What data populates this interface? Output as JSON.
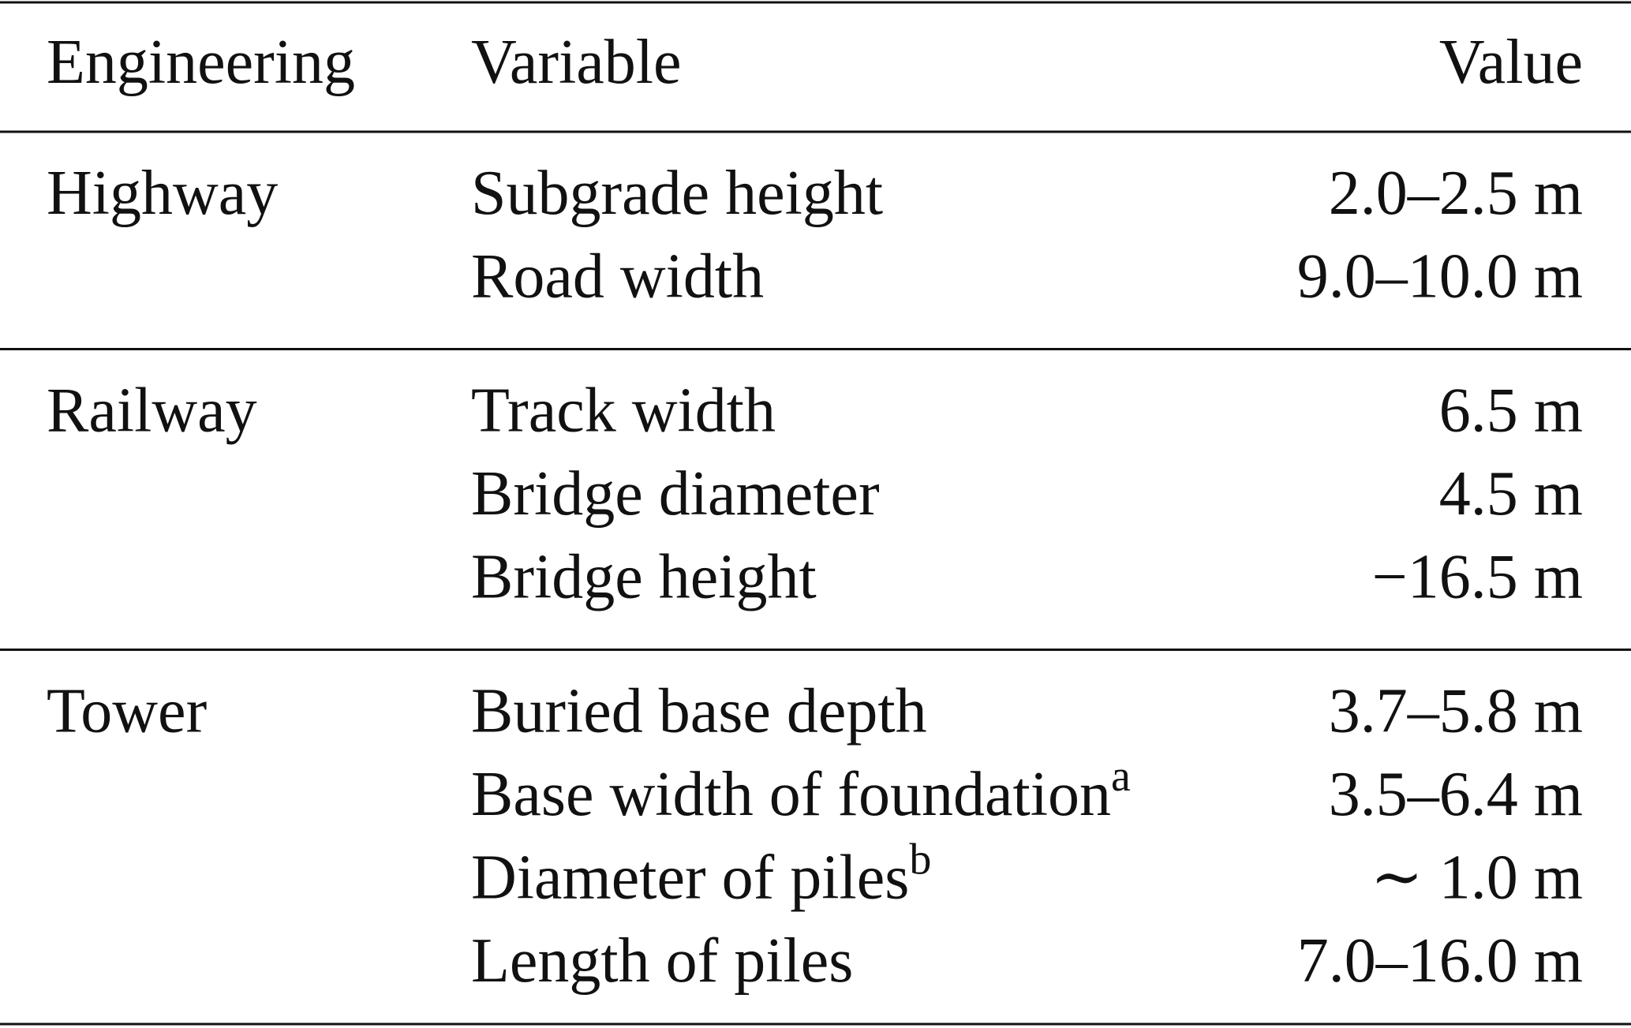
{
  "table": {
    "header": [
      "Engineering",
      "Variable",
      "Value"
    ],
    "groups": [
      {
        "engineering": "Highway",
        "rows": [
          {
            "variable": "Subgrade height",
            "value": "2.0–2.5 m"
          },
          {
            "variable": "Road width",
            "value": "9.0–10.0 m"
          }
        ]
      },
      {
        "engineering": "Railway",
        "rows": [
          {
            "variable": "Track width",
            "value": "6.5 m"
          },
          {
            "variable": "Bridge diameter",
            "value": "4.5 m"
          },
          {
            "variable": "Bridge height",
            "value": "−16.5 m"
          }
        ]
      },
      {
        "engineering": "Tower",
        "rows": [
          {
            "variable": "Buried base depth",
            "value": "3.7–5.8 m"
          },
          {
            "variable": "Base width of foundation",
            "note": "a",
            "value": "3.5–6.4 m"
          },
          {
            "variable": "Diameter of piles",
            "note": "b",
            "value": "∼ 1.0 m"
          },
          {
            "variable": "Length of piles",
            "value": "7.0–16.0 m"
          }
        ]
      }
    ]
  }
}
